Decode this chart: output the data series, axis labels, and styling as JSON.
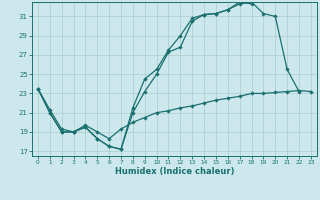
{
  "xlabel": "Humidex (Indice chaleur)",
  "xlim": [
    -0.5,
    23.5
  ],
  "ylim": [
    16.5,
    32.5
  ],
  "xticks": [
    0,
    1,
    2,
    3,
    4,
    5,
    6,
    7,
    8,
    9,
    10,
    11,
    12,
    13,
    14,
    15,
    16,
    17,
    18,
    19,
    20,
    21,
    22,
    23
  ],
  "yticks": [
    17,
    19,
    21,
    23,
    25,
    27,
    29,
    31
  ],
  "bg_color": "#cce8ec",
  "grid_color": "#aacccc",
  "line_color": "#1a7070",
  "line1_x": [
    0,
    1,
    2,
    3,
    4,
    5,
    6,
    7,
    8,
    9,
    10,
    11,
    12,
    13,
    14,
    15,
    16,
    17,
    18,
    19,
    20,
    21,
    22
  ],
  "line1_y": [
    23.5,
    21.0,
    19.0,
    19.0,
    19.5,
    18.3,
    17.5,
    17.2,
    21.0,
    23.2,
    25.0,
    27.3,
    27.8,
    30.5,
    31.2,
    31.3,
    31.7,
    32.3,
    32.5,
    31.3,
    31.0,
    25.5,
    23.2
  ],
  "line2_x": [
    0,
    1,
    2,
    3,
    4,
    5,
    6,
    7,
    8,
    9,
    10,
    11,
    12,
    13,
    14,
    15,
    16,
    17,
    18
  ],
  "line2_y": [
    23.5,
    21.0,
    19.0,
    19.0,
    19.5,
    18.3,
    17.5,
    17.2,
    21.5,
    24.5,
    25.5,
    27.5,
    29.0,
    30.8,
    31.2,
    31.3,
    31.7,
    32.5,
    32.3
  ],
  "line3_x": [
    0,
    1,
    2,
    3,
    4,
    5,
    6,
    7,
    8,
    9,
    10,
    11,
    12,
    13,
    14,
    15,
    16,
    17,
    18,
    19,
    20,
    21,
    22,
    23
  ],
  "line3_y": [
    23.5,
    21.3,
    19.3,
    19.0,
    19.7,
    19.0,
    18.3,
    19.3,
    20.0,
    20.5,
    21.0,
    21.2,
    21.5,
    21.7,
    22.0,
    22.3,
    22.5,
    22.7,
    23.0,
    23.0,
    23.1,
    23.2,
    23.3,
    23.2
  ]
}
